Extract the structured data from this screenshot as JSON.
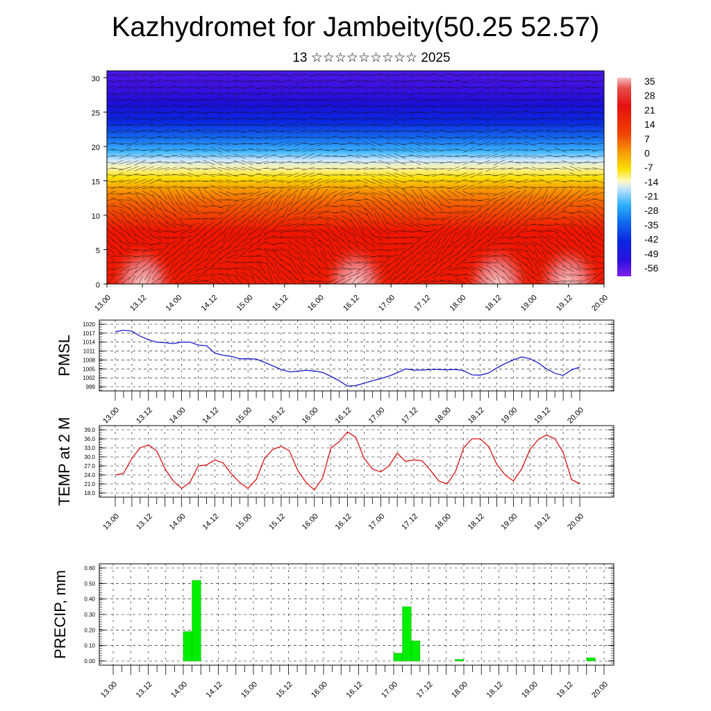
{
  "title": "Kazhydromet for Jambeity(50.25 52.57)",
  "subtitle": "13 ☆☆☆☆☆☆☆☆☆ 2025",
  "colors": {
    "pmsl_line": "#1a1acc",
    "temp_line": "#dd1111",
    "precip_bar": "#00ee00",
    "precip_bar_edge": "#00aa00"
  },
  "time_labels": [
    "13.00",
    "13.12",
    "14.00",
    "14.12",
    "15.00",
    "15.12",
    "16.00",
    "16.12",
    "17.00",
    "17.12",
    "18.00",
    "18.12",
    "19.00",
    "19.12",
    "20.00"
  ],
  "chart_data": [
    {
      "type": "heatmap",
      "panel": "cross-section",
      "y_ticks": [
        0,
        5,
        10,
        15,
        20,
        25,
        30
      ],
      "ylim": [
        0,
        31
      ],
      "x_ticks": [
        "13.00",
        "13.12",
        "14.00",
        "14.12",
        "15.00",
        "15.12",
        "16.00",
        "16.12",
        "17.00",
        "17.12",
        "18.00",
        "18.12",
        "19.00",
        "19.12",
        "20.00"
      ],
      "colorbar_labels": [
        "35",
        "28",
        "21",
        "14",
        "7",
        "0",
        "-7",
        "-14",
        "-21",
        "-28",
        "-35",
        "-42",
        "-49",
        "-56"
      ],
      "colorbar_range": [
        -60,
        38
      ],
      "warm_core_centers": [
        "13.12",
        "16.12",
        "18.12",
        "19.12"
      ]
    },
    {
      "type": "line",
      "panel": "pmsl",
      "ylabel": "PMSL",
      "y_ticks": [
        "1020",
        "1017",
        "1014",
        "1011",
        "1008",
        "1005",
        "1002",
        "999"
      ],
      "ylim": [
        999,
        1020
      ],
      "x_ticks": [
        "13.00",
        "13.12",
        "14.00",
        "14.12",
        "15.00",
        "15.12",
        "16.00",
        "16.12",
        "17.00",
        "17.12",
        "18.00",
        "18.12",
        "19.00",
        "19.12",
        "20.00"
      ],
      "grid": true,
      "values": [
        1017.5,
        1018.0,
        1017.7,
        1016.0,
        1014.8,
        1014.0,
        1013.8,
        1013.5,
        1014.0,
        1014.0,
        1013.0,
        1012.8,
        1010.3,
        1009.6,
        1009.2,
        1008.4,
        1008.4,
        1008.3,
        1007.2,
        1006.0,
        1004.8,
        1004.0,
        1004.2,
        1004.5,
        1004.3,
        1003.8,
        1002.5,
        1001.0,
        999.2,
        999.4,
        1000.2,
        1001.0,
        1001.7,
        1002.6,
        1003.7,
        1005.0,
        1004.6,
        1004.6,
        1004.8,
        1004.8,
        1004.7,
        1004.8,
        1004.4,
        1003.0,
        1002.9,
        1003.6,
        1005.3,
        1006.8,
        1008.0,
        1009.0,
        1008.4,
        1007.0,
        1005.0,
        1003.5,
        1002.8,
        1004.7,
        1005.6
      ]
    },
    {
      "type": "line",
      "panel": "temperature",
      "ylabel": "TEMP at 2 M",
      "y_ticks": [
        "39.0",
        "36.0",
        "33.0",
        "30.0",
        "27.0",
        "24.0",
        "21.0",
        "18.0"
      ],
      "ylim": [
        18,
        39
      ],
      "x_ticks": [
        "13.00",
        "13.12",
        "14.00",
        "14.12",
        "15.00",
        "15.12",
        "16.00",
        "16.12",
        "17.00",
        "17.12",
        "18.00",
        "18.12",
        "19.00",
        "19.12",
        "20.00"
      ],
      "grid": true,
      "values": [
        24.0,
        24.5,
        29.5,
        33.0,
        34.0,
        32.0,
        26.0,
        22.0,
        19.5,
        21.5,
        27.0,
        27.3,
        29.0,
        28.0,
        24.3,
        21.5,
        19.5,
        22.5,
        29.5,
        32.5,
        33.5,
        32.0,
        25.5,
        21.5,
        19.0,
        23.0,
        33.0,
        35.0,
        38.3,
        36.5,
        29.5,
        26.0,
        25.0,
        27.0,
        31.2,
        28.5,
        29.0,
        28.7,
        25.5,
        22.0,
        21.0,
        25.0,
        33.0,
        36.0,
        36.0,
        33.5,
        27.5,
        24.0,
        22.0,
        26.0,
        32.5,
        35.8,
        37.3,
        36.0,
        31.5,
        22.5,
        21.0
      ]
    },
    {
      "type": "bar",
      "panel": "precipitation",
      "ylabel": "PRECIP, mm",
      "y_ticks": [
        "0.60",
        "0.50",
        "0.40",
        "0.30",
        "0.20",
        "0.10",
        "0.00"
      ],
      "ylim": [
        0,
        0.6
      ],
      "x_ticks": [
        "13.00",
        "13.12",
        "14.00",
        "14.12",
        "15.00",
        "15.12",
        "16.00",
        "16.12",
        "17.00",
        "17.12",
        "18.00",
        "18.12",
        "19.00",
        "19.12",
        "20.00"
      ],
      "grid": true,
      "bars": [
        {
          "time": "14.03",
          "value": 0.19
        },
        {
          "time": "14.06",
          "value": 0.52
        },
        {
          "time": "17.03",
          "value": 0.05
        },
        {
          "time": "17.06",
          "value": 0.35
        },
        {
          "time": "17.09",
          "value": 0.13
        },
        {
          "time": "18.00",
          "value": 0.01
        },
        {
          "time": "19.21",
          "value": 0.02
        }
      ]
    }
  ]
}
